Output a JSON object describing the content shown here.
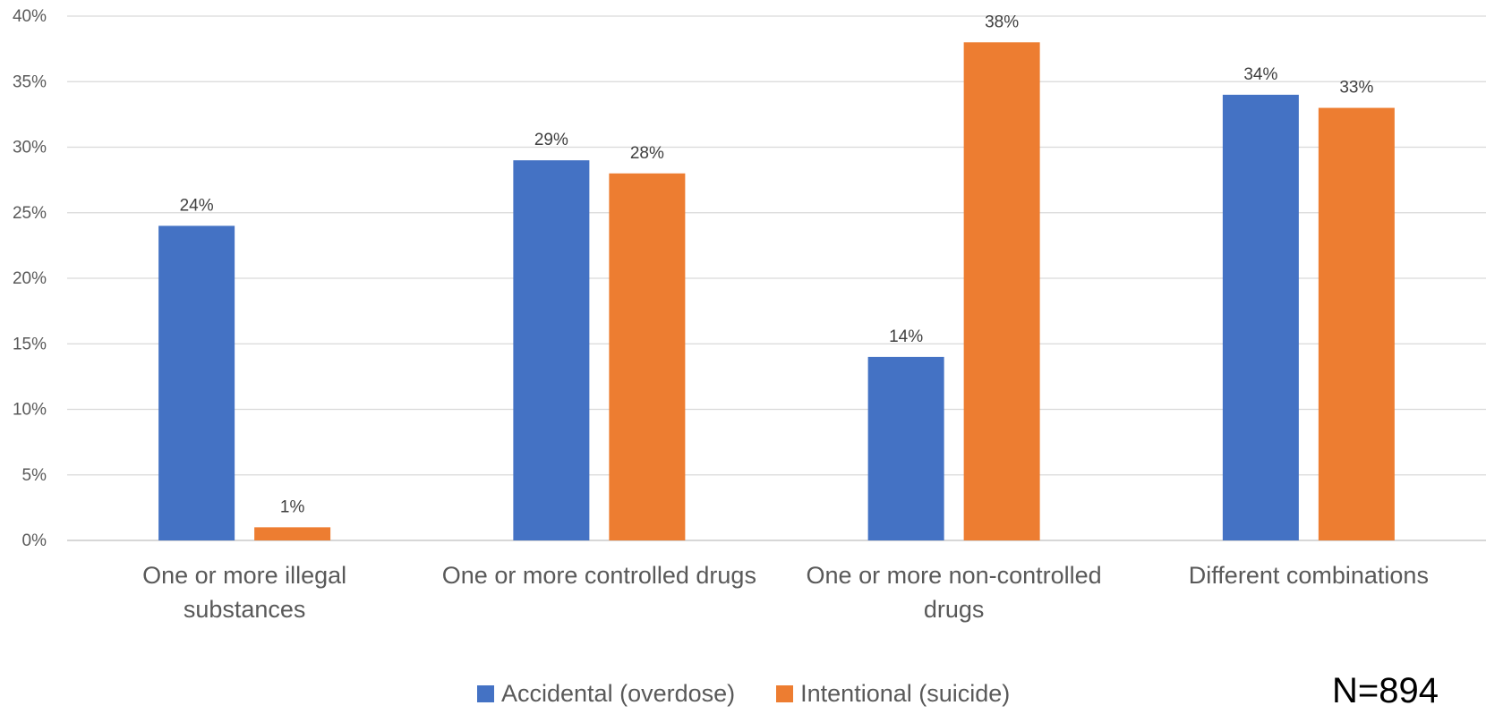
{
  "chart_data": {
    "type": "bar",
    "categories": [
      [
        "One or more illegal",
        "substances"
      ],
      [
        "One or more controlled drugs"
      ],
      [
        "One or more non-controlled",
        "drugs"
      ],
      [
        "Different combinations"
      ]
    ],
    "series": [
      {
        "name": "Accidental (overdose)",
        "color": "#4472C4",
        "values": [
          24,
          29,
          14,
          34
        ],
        "labels": [
          "24%",
          "29%",
          "14%",
          "34%"
        ]
      },
      {
        "name": "Intentional (suicide)",
        "color": "#ED7D31",
        "values": [
          1,
          28,
          38,
          33
        ],
        "labels": [
          "1%",
          "28%",
          "38%",
          "33%"
        ]
      }
    ],
    "ylim": [
      0,
      40
    ],
    "yticks": [
      "0%",
      "5%",
      "10%",
      "15%",
      "20%",
      "25%",
      "30%",
      "35%",
      "40%"
    ],
    "grid": true,
    "legend_position": "bottom"
  },
  "note": "N=894"
}
